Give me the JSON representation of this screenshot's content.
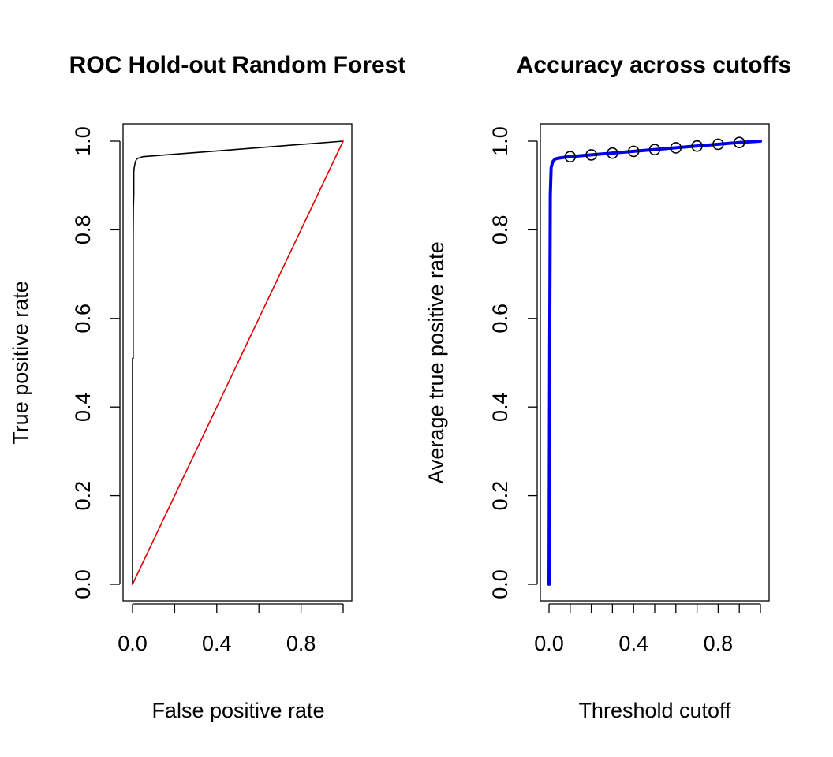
{
  "chart_data": [
    {
      "type": "line",
      "title": "ROC Hold-out Random Forest",
      "xlabel": "False positive rate",
      "ylabel": "True positive rate",
      "xlim": [
        0,
        1
      ],
      "ylim": [
        0,
        1
      ],
      "x_ticks": [
        0.0,
        0.2,
        0.4,
        0.6,
        0.8,
        1.0
      ],
      "x_tick_labels": [
        "0.0",
        "",
        "0.4",
        "",
        "0.8",
        ""
      ],
      "y_ticks": [
        0.0,
        0.2,
        0.4,
        0.6,
        0.8,
        1.0
      ],
      "y_tick_labels": [
        "0.0",
        "0.2",
        "0.4",
        "0.6",
        "0.8",
        "1.0"
      ],
      "grid": false,
      "series": [
        {
          "color": "#000000",
          "x": [
            0.0,
            0.0,
            0.003,
            0.003,
            0.004,
            0.006,
            0.006,
            0.008,
            0.01,
            0.012,
            0.015,
            0.02,
            0.03,
            0.05,
            1.0
          ],
          "y": [
            0.0,
            0.51,
            0.51,
            0.78,
            0.85,
            0.88,
            0.93,
            0.94,
            0.945,
            0.95,
            0.955,
            0.96,
            0.962,
            0.965,
            1.0
          ]
        },
        {
          "color": "#dd0000",
          "x": [
            0.0,
            1.0
          ],
          "y": [
            0.0,
            1.0
          ]
        }
      ]
    },
    {
      "type": "line",
      "title": "Accuracy across cutoffs",
      "xlabel": "Threshold cutoff",
      "ylabel": "Average true positive rate",
      "xlim": [
        0,
        1
      ],
      "ylim": [
        0,
        1
      ],
      "x_ticks": [
        0.0,
        0.1,
        0.2,
        0.3,
        0.4,
        0.5,
        0.6,
        0.7,
        0.8,
        0.9,
        1.0
      ],
      "x_tick_labels": [
        "0.0",
        "",
        "",
        "",
        "0.4",
        "",
        "",
        "",
        "0.8",
        "",
        ""
      ],
      "y_ticks": [
        0.0,
        0.2,
        0.4,
        0.6,
        0.8,
        1.0
      ],
      "y_tick_labels": [
        "0.0",
        "0.2",
        "0.4",
        "0.6",
        "0.8",
        "1.0"
      ],
      "grid": false,
      "series": [
        {
          "color": "#0000ee",
          "x": [
            0.0,
            0.003,
            0.006,
            0.01,
            0.015,
            0.02,
            0.03,
            0.05,
            0.1,
            0.2,
            0.3,
            0.4,
            0.5,
            0.6,
            0.7,
            0.8,
            0.9,
            1.0
          ],
          "y": [
            0.0,
            0.51,
            0.88,
            0.94,
            0.95,
            0.955,
            0.96,
            0.962,
            0.965,
            0.969,
            0.973,
            0.977,
            0.981,
            0.985,
            0.989,
            0.993,
            0.997,
            1.0
          ]
        }
      ],
      "points": {
        "x": [
          0.1,
          0.2,
          0.3,
          0.4,
          0.5,
          0.6,
          0.7,
          0.8,
          0.9
        ],
        "y": [
          0.965,
          0.969,
          0.973,
          0.977,
          0.981,
          0.985,
          0.989,
          0.993,
          0.997
        ]
      }
    }
  ]
}
